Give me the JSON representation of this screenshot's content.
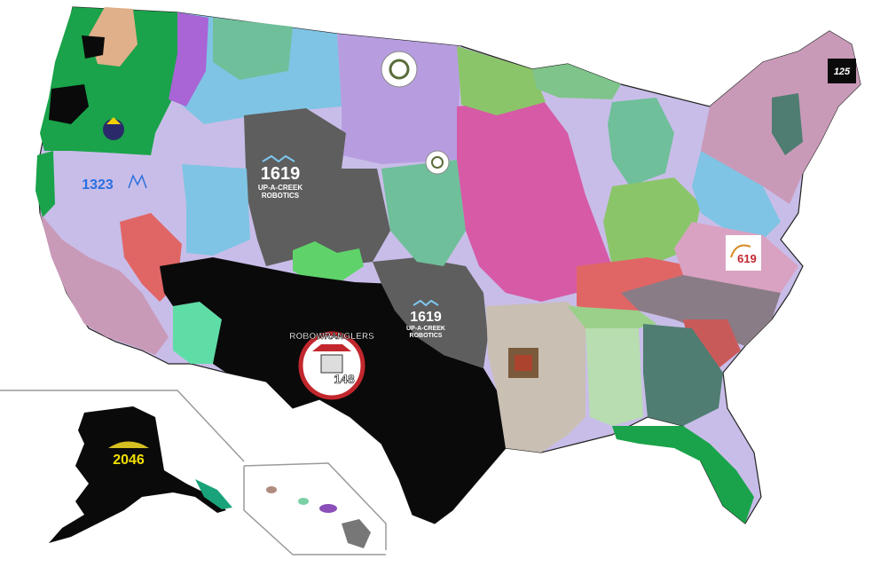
{
  "map": {
    "colors": {
      "background": "#ffffff",
      "state_border": "#222222",
      "inset_border": "#9a9a9a",
      "black_region": "#0a0a0a",
      "gray_region": "#5e5e5e",
      "tan_region": "#c9bfb2",
      "green_region": "#1aa34a",
      "pink_region": "#d65aa6",
      "lavender_region": "#c8bde8",
      "teal_region": "#6fbf9a",
      "dark_teal_region": "#4f7d72",
      "purple_region": "#a964d6",
      "light_blue_region": "#7fc4e4",
      "salmon_region": "#e06666",
      "mauve_region": "#c99ab8",
      "olive_region": "#9aa64e"
    },
    "logos": [
      {
        "id": "team-1619-west",
        "number": "1619",
        "line1": "UP-A-CREEK",
        "line2": "ROBOTICS"
      },
      {
        "id": "team-1619-central",
        "number": "1619",
        "line1": "UP-A-CREEK",
        "line2": "ROBOTICS"
      },
      {
        "id": "team-148",
        "number": "148",
        "banner": "ROBOWRANGLERS"
      },
      {
        "id": "team-1323",
        "number": "1323"
      },
      {
        "id": "team-2046",
        "number": "2046"
      },
      {
        "id": "team-125",
        "number": "125"
      },
      {
        "id": "team-619",
        "number": "619"
      }
    ]
  }
}
